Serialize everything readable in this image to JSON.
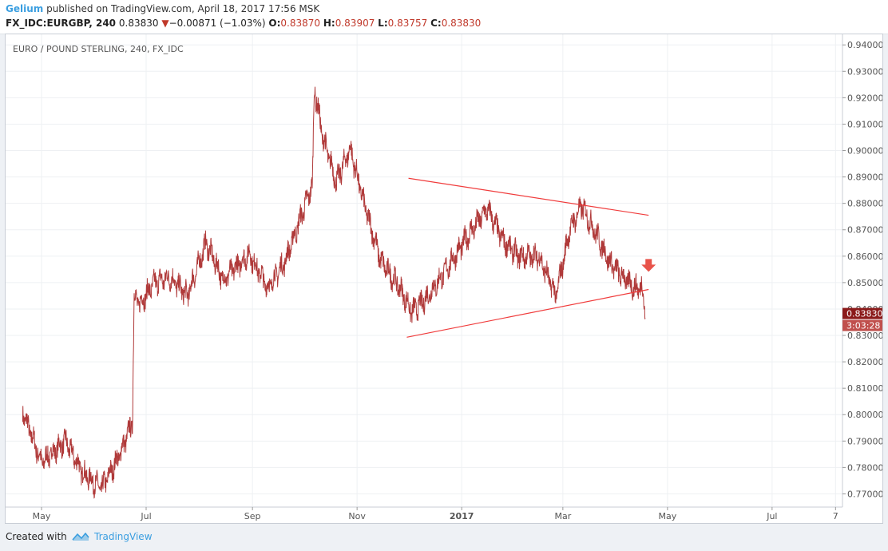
{
  "header": {
    "author": "Gelium",
    "published_text": " published on TradingView.com, April 18, 2017 17:56 MSK",
    "symbol": "FX_IDC:EURGBP, 240",
    "last": "0.83830",
    "change_arrow": "▼",
    "change": "−0.00871 (−1.03%)",
    "o_label": "O:",
    "o_value": "0.83870",
    "h_label": "H:",
    "h_value": "0.83907",
    "l_label": "L:",
    "l_value": "0.83757",
    "c_label": "C:",
    "c_value": "0.83830"
  },
  "footer": {
    "created_with": "Created with",
    "brand": "TradingView"
  },
  "colors": {
    "candles": "#b03a3a",
    "trendline": "#f03c3c",
    "arrow": "#e8534a",
    "price_tag": "#8b1a1a",
    "timer_tag": "#c0504d",
    "accent": "#3a9ee0"
  },
  "chart_data": {
    "type": "line",
    "title": "EURO / POUND STERLING, 240, FX_IDC",
    "y_ticks": [
      "0.94000",
      "0.93000",
      "0.92000",
      "0.91000",
      "0.90000",
      "0.89000",
      "0.88000",
      "0.87000",
      "0.86000",
      "0.85000",
      "0.84000",
      "0.83000",
      "0.82000",
      "0.81000",
      "0.80000",
      "0.79000",
      "0.78000",
      "0.77000"
    ],
    "ylim": [
      0.765,
      0.944
    ],
    "x_ticks": [
      "May",
      "Jul",
      "Sep",
      "Nov",
      "2017",
      "Mar",
      "May",
      "Jul",
      "7"
    ],
    "grid": true,
    "series": [
      {
        "x": [
          "2016-04-20",
          "2016-05-01",
          "2016-05-15",
          "2016-05-25",
          "2016-06-05",
          "2016-06-15",
          "2016-06-23",
          "2016-06-24",
          "2016-06-27",
          "2016-07-06",
          "2016-07-15",
          "2016-07-25",
          "2016-08-05",
          "2016-08-15",
          "2016-08-30",
          "2016-09-10",
          "2016-09-20",
          "2016-10-01",
          "2016-10-06",
          "2016-10-07",
          "2016-10-12",
          "2016-10-20",
          "2016-10-28",
          "2016-11-05",
          "2016-11-15",
          "2016-11-25",
          "2016-12-03",
          "2016-12-10",
          "2016-12-20",
          "2017-01-05",
          "2017-01-16",
          "2017-01-25",
          "2017-02-03",
          "2017-02-15",
          "2017-02-25",
          "2017-03-05",
          "2017-03-12",
          "2017-03-20",
          "2017-03-28",
          "2017-04-05",
          "2017-04-13",
          "2017-04-16",
          "2017-04-18"
        ],
        "y": [
          0.801,
          0.782,
          0.79,
          0.778,
          0.772,
          0.784,
          0.797,
          0.845,
          0.842,
          0.85,
          0.852,
          0.845,
          0.865,
          0.851,
          0.861,
          0.848,
          0.858,
          0.878,
          0.887,
          0.924,
          0.905,
          0.888,
          0.901,
          0.88,
          0.858,
          0.849,
          0.839,
          0.843,
          0.852,
          0.868,
          0.878,
          0.866,
          0.86,
          0.86,
          0.845,
          0.87,
          0.879,
          0.869,
          0.858,
          0.852,
          0.8475,
          0.849,
          0.8383
        ]
      }
    ],
    "trendlines": [
      {
        "from": {
          "x": "2016-12-01",
          "y": 0.8895
        },
        "to": {
          "x": "2017-04-20",
          "y": 0.8755
        }
      },
      {
        "from": {
          "x": "2016-11-30",
          "y": 0.8293
        },
        "to": {
          "x": "2017-04-20",
          "y": 0.8474
        }
      }
    ],
    "price_label": "0.83830",
    "timer_label": "3:03:28",
    "signal": "down-arrow"
  }
}
